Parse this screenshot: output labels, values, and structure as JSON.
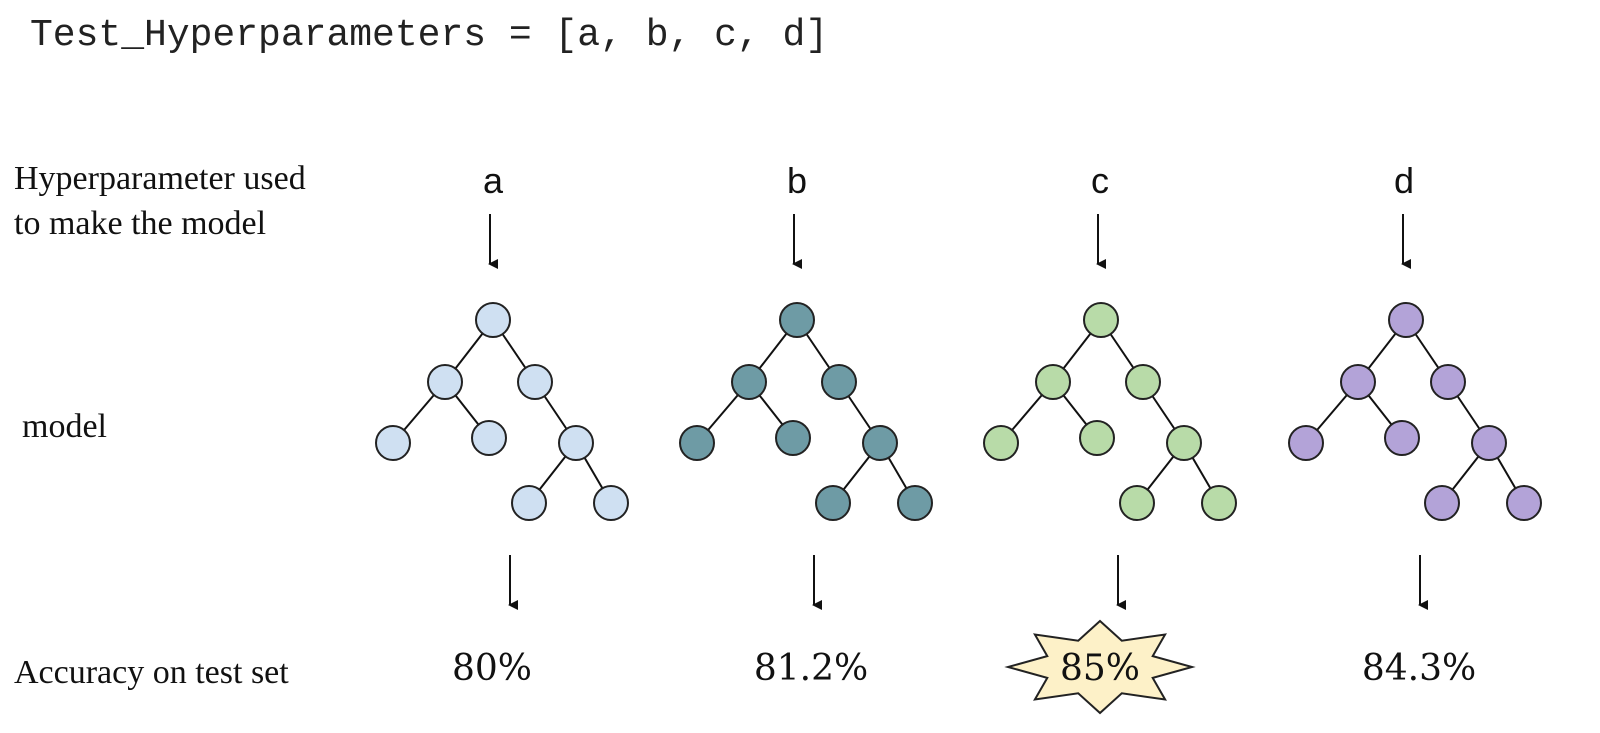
{
  "code_line": "Test_Hyperparameters = [a, b, c, d]",
  "row_labels": {
    "hyperparameter": "Hyperparameter used\nto make the model",
    "model": "model",
    "accuracy": "Accuracy on test set"
  },
  "models": [
    {
      "hyperparameter": "a",
      "accuracy": "80%",
      "color": "#cfe0f2",
      "highlighted": false
    },
    {
      "hyperparameter": "b",
      "accuracy": "81.2%",
      "color": "#6e9ba5",
      "highlighted": false
    },
    {
      "hyperparameter": "c",
      "accuracy": "85%",
      "color": "#b8dba8",
      "highlighted": true
    },
    {
      "hyperparameter": "d",
      "accuracy": "84.3%",
      "color": "#b3a3d8",
      "highlighted": false
    }
  ],
  "highlight_color": "#fdf1c8"
}
